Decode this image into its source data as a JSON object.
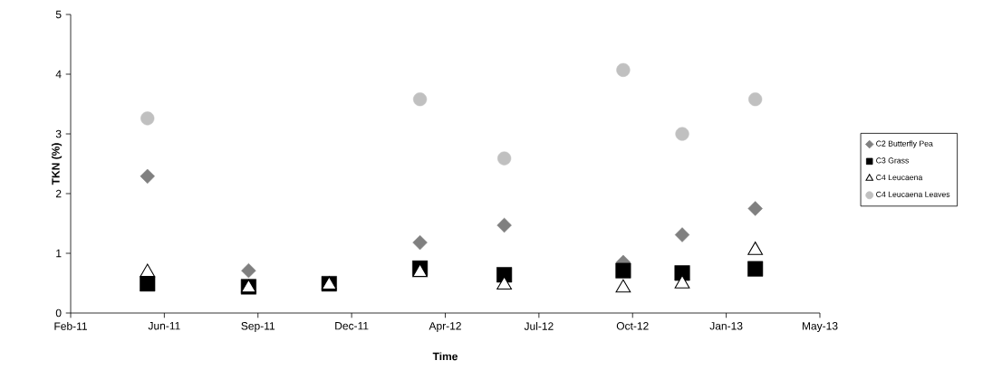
{
  "chart_data": {
    "type": "scatter",
    "xlabel": "Time",
    "ylabel": "TKN (%)",
    "x": [
      "2011-05-21",
      "2011-09-06",
      "2011-12-01",
      "2012-03-07",
      "2012-06-05",
      "2012-10-10",
      "2012-12-12",
      "2013-02-28"
    ],
    "series": [
      {
        "name": "C2 Butterfly Pea",
        "color": "#808080",
        "marker": "diamond",
        "values": [
          2.29,
          0.71,
          null,
          1.18,
          1.47,
          0.85,
          1.31,
          1.75
        ]
      },
      {
        "name": "C3 Grass",
        "color": "#000000",
        "marker": "square",
        "values": [
          0.49,
          0.44,
          0.49,
          0.75,
          0.64,
          0.71,
          0.67,
          0.74
        ]
      },
      {
        "name": "C4 Leucaena",
        "color": "#000000",
        "marker": "triangle",
        "values": [
          0.68,
          0.42,
          0.47,
          0.68,
          0.47,
          0.42,
          0.49,
          1.05
        ]
      },
      {
        "name": "C4 Leucaena Leaves",
        "color": "#c0c0c0",
        "marker": "circle",
        "values": [
          3.26,
          null,
          null,
          3.58,
          2.59,
          4.07,
          3.0,
          3.58
        ]
      }
    ],
    "xlim": [
      "2011-02-28",
      "2013-05-08"
    ],
    "xticks": [
      {
        "value": "2011-02-28",
        "label": "Feb-11"
      },
      {
        "value": "2011-06-08",
        "label": "Jun-11"
      },
      {
        "value": "2011-09-16",
        "label": "Sep-11"
      },
      {
        "value": "2011-12-25",
        "label": "Dec-11"
      },
      {
        "value": "2012-04-03",
        "label": "Apr-12"
      },
      {
        "value": "2012-07-12",
        "label": "Jul-12"
      },
      {
        "value": "2012-10-20",
        "label": "Oct-12"
      },
      {
        "value": "2013-01-28",
        "label": "Jan-13"
      },
      {
        "value": "2013-05-08",
        "label": "May-13"
      }
    ],
    "ylim": [
      0,
      5
    ],
    "yticks": [
      0,
      1,
      2,
      3,
      4,
      5
    ],
    "grid": false,
    "legend": "right"
  }
}
